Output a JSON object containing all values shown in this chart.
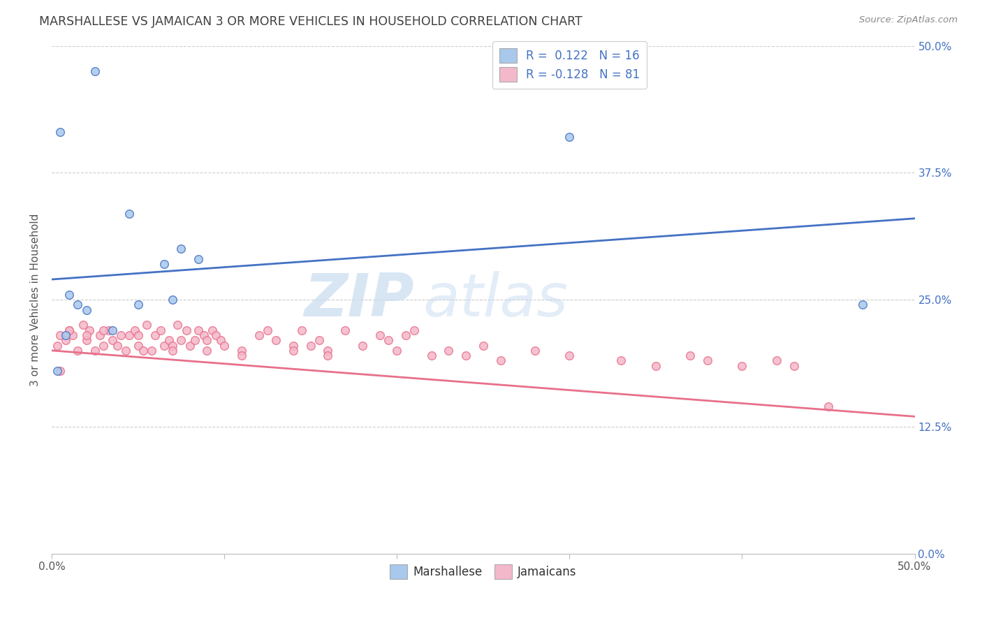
{
  "title": "MARSHALLESE VS JAMAICAN 3 OR MORE VEHICLES IN HOUSEHOLD CORRELATION CHART",
  "source": "Source: ZipAtlas.com",
  "ylabel": "3 or more Vehicles in Household",
  "xlim": [
    0.0,
    50.0
  ],
  "ylim": [
    0.0,
    50.0
  ],
  "yticks": [
    0.0,
    12.5,
    25.0,
    37.5,
    50.0
  ],
  "xticks": [
    0.0,
    10.0,
    20.0,
    30.0,
    40.0,
    50.0
  ],
  "watermark_zip": "ZIP",
  "watermark_atlas": "atlas",
  "blue_color": "#A8C8EC",
  "pink_color": "#F4B8CB",
  "blue_line_color": "#4472C4",
  "pink_line_color": "#E8708A",
  "blue_trend_y0": 27.0,
  "blue_trend_y1": 33.0,
  "pink_trend_y0": 20.0,
  "pink_trend_y1": 13.5,
  "marshallese_x": [
    2.5,
    0.5,
    4.5,
    7.5,
    6.5,
    8.5,
    7.0,
    1.0,
    1.5,
    2.0,
    3.5,
    5.0,
    0.8,
    0.3,
    30.0,
    47.0
  ],
  "marshallese_y": [
    47.5,
    41.5,
    33.5,
    30.0,
    28.5,
    29.0,
    25.0,
    25.5,
    24.5,
    24.0,
    22.0,
    24.5,
    21.5,
    18.0,
    41.0,
    24.5
  ],
  "jamaicans_x": [
    0.3,
    0.5,
    0.8,
    1.0,
    1.2,
    1.5,
    1.8,
    2.0,
    2.2,
    2.5,
    2.8,
    3.0,
    3.3,
    3.5,
    3.8,
    4.0,
    4.3,
    4.5,
    4.8,
    5.0,
    5.3,
    5.5,
    5.8,
    6.0,
    6.3,
    6.5,
    6.8,
    7.0,
    7.3,
    7.5,
    7.8,
    8.0,
    8.3,
    8.5,
    8.8,
    9.0,
    9.3,
    9.5,
    9.8,
    10.0,
    11.0,
    12.0,
    12.5,
    13.0,
    14.0,
    14.5,
    15.0,
    15.5,
    16.0,
    17.0,
    18.0,
    19.0,
    19.5,
    20.0,
    20.5,
    21.0,
    22.0,
    23.0,
    24.0,
    25.0,
    26.0,
    28.0,
    30.0,
    33.0,
    35.0,
    37.0,
    38.0,
    40.0,
    42.0,
    43.0,
    45.0,
    0.5,
    1.0,
    2.0,
    3.0,
    5.0,
    7.0,
    9.0,
    11.0,
    14.0,
    16.0
  ],
  "jamaicans_y": [
    20.5,
    18.0,
    21.0,
    22.0,
    21.5,
    20.0,
    22.5,
    21.0,
    22.0,
    20.0,
    21.5,
    20.5,
    22.0,
    21.0,
    20.5,
    21.5,
    20.0,
    21.5,
    22.0,
    20.5,
    20.0,
    22.5,
    20.0,
    21.5,
    22.0,
    20.5,
    21.0,
    20.5,
    22.5,
    21.0,
    22.0,
    20.5,
    21.0,
    22.0,
    21.5,
    20.0,
    22.0,
    21.5,
    21.0,
    20.5,
    20.0,
    21.5,
    22.0,
    21.0,
    20.5,
    22.0,
    20.5,
    21.0,
    20.0,
    22.0,
    20.5,
    21.5,
    21.0,
    20.0,
    21.5,
    22.0,
    19.5,
    20.0,
    19.5,
    20.5,
    19.0,
    20.0,
    19.5,
    19.0,
    18.5,
    19.5,
    19.0,
    18.5,
    19.0,
    18.5,
    14.5,
    21.5,
    22.0,
    21.5,
    22.0,
    21.5,
    20.0,
    21.0,
    19.5,
    20.0,
    19.5
  ],
  "bg_color": "#FFFFFF",
  "grid_color": "#CCCCCC",
  "title_color": "#404040",
  "axis_label_color": "#555555",
  "tick_color_right": "#4472C4",
  "scatter_size": 70,
  "scatter_edge_width": 1.0
}
